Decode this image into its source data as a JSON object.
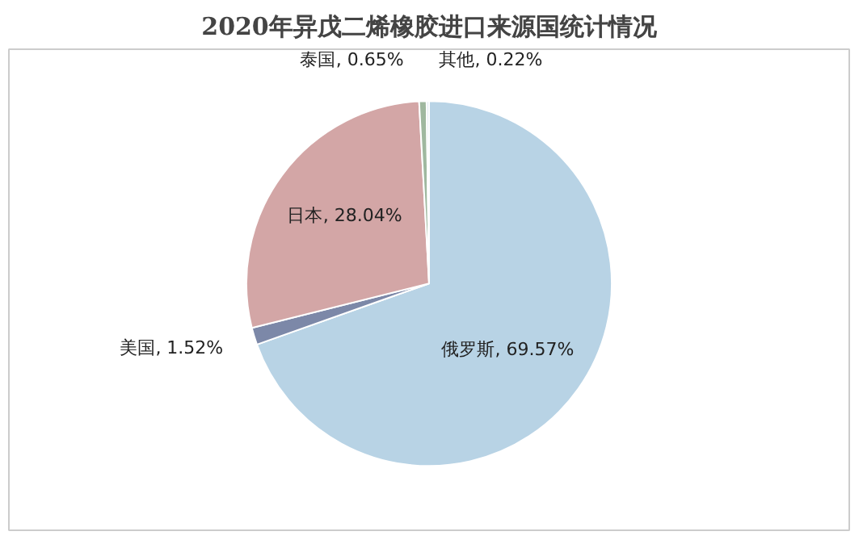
{
  "chart_data": {
    "type": "pie",
    "title": "2020年异戊二烯橡胶进口来源国统计情况",
    "categories": [
      "俄罗斯",
      "美国",
      "日本",
      "泰国",
      "其他"
    ],
    "values": [
      69.57,
      1.52,
      28.04,
      0.65,
      0.22
    ],
    "colors": [
      "#b8d3e5",
      "#7c88a8",
      "#d3a6a6",
      "#9fb89f",
      "#dfeaf2"
    ],
    "value_labels": [
      ", 69.57%",
      ", 1.52%",
      ", 28.04%",
      ", 0.65%",
      ", 0.22%"
    ]
  }
}
